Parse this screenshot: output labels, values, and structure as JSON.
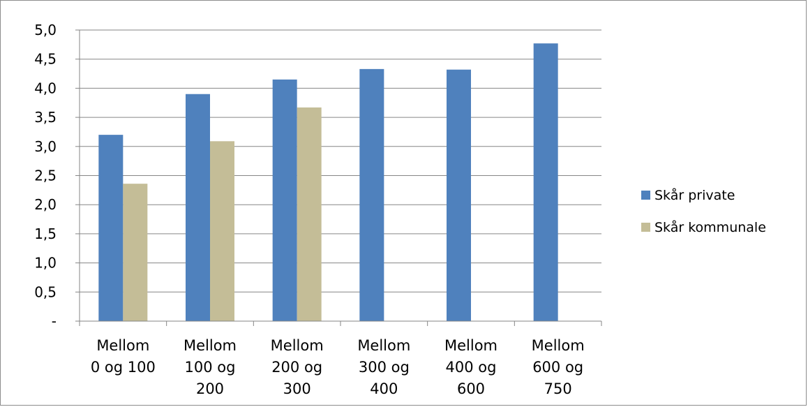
{
  "chart_data": {
    "type": "bar",
    "title": "",
    "xlabel": "",
    "ylabel": "",
    "categories": [
      [
        "Mellom",
        "0 og 100"
      ],
      [
        "Mellom",
        "100 og",
        "200"
      ],
      [
        "Mellom",
        "200 og",
        "300"
      ],
      [
        "Mellom",
        "300 og",
        "400"
      ],
      [
        "Mellom",
        "400 og",
        "600"
      ],
      [
        "Mellom",
        "600 og",
        "750"
      ]
    ],
    "series": [
      {
        "name": "Skår private",
        "color": "#4f81bd",
        "values": [
          3.2,
          3.9,
          4.15,
          4.33,
          4.32,
          4.77
        ]
      },
      {
        "name": "Skår kommunale",
        "color": "#c4bd97",
        "values": [
          2.36,
          3.09,
          3.67,
          null,
          null,
          null
        ]
      }
    ],
    "ylim": [
      0,
      5
    ],
    "yticks": [
      0,
      0.5,
      1,
      1.5,
      2,
      2.5,
      3,
      3.5,
      4,
      4.5,
      5
    ],
    "ytick_labels": [
      "-",
      "0,5",
      "1,0",
      "1,5",
      "2,0",
      "2,5",
      "3,0",
      "3,5",
      "4,0",
      "4,5",
      "5,0"
    ],
    "grid": true,
    "legend_position": "right"
  }
}
